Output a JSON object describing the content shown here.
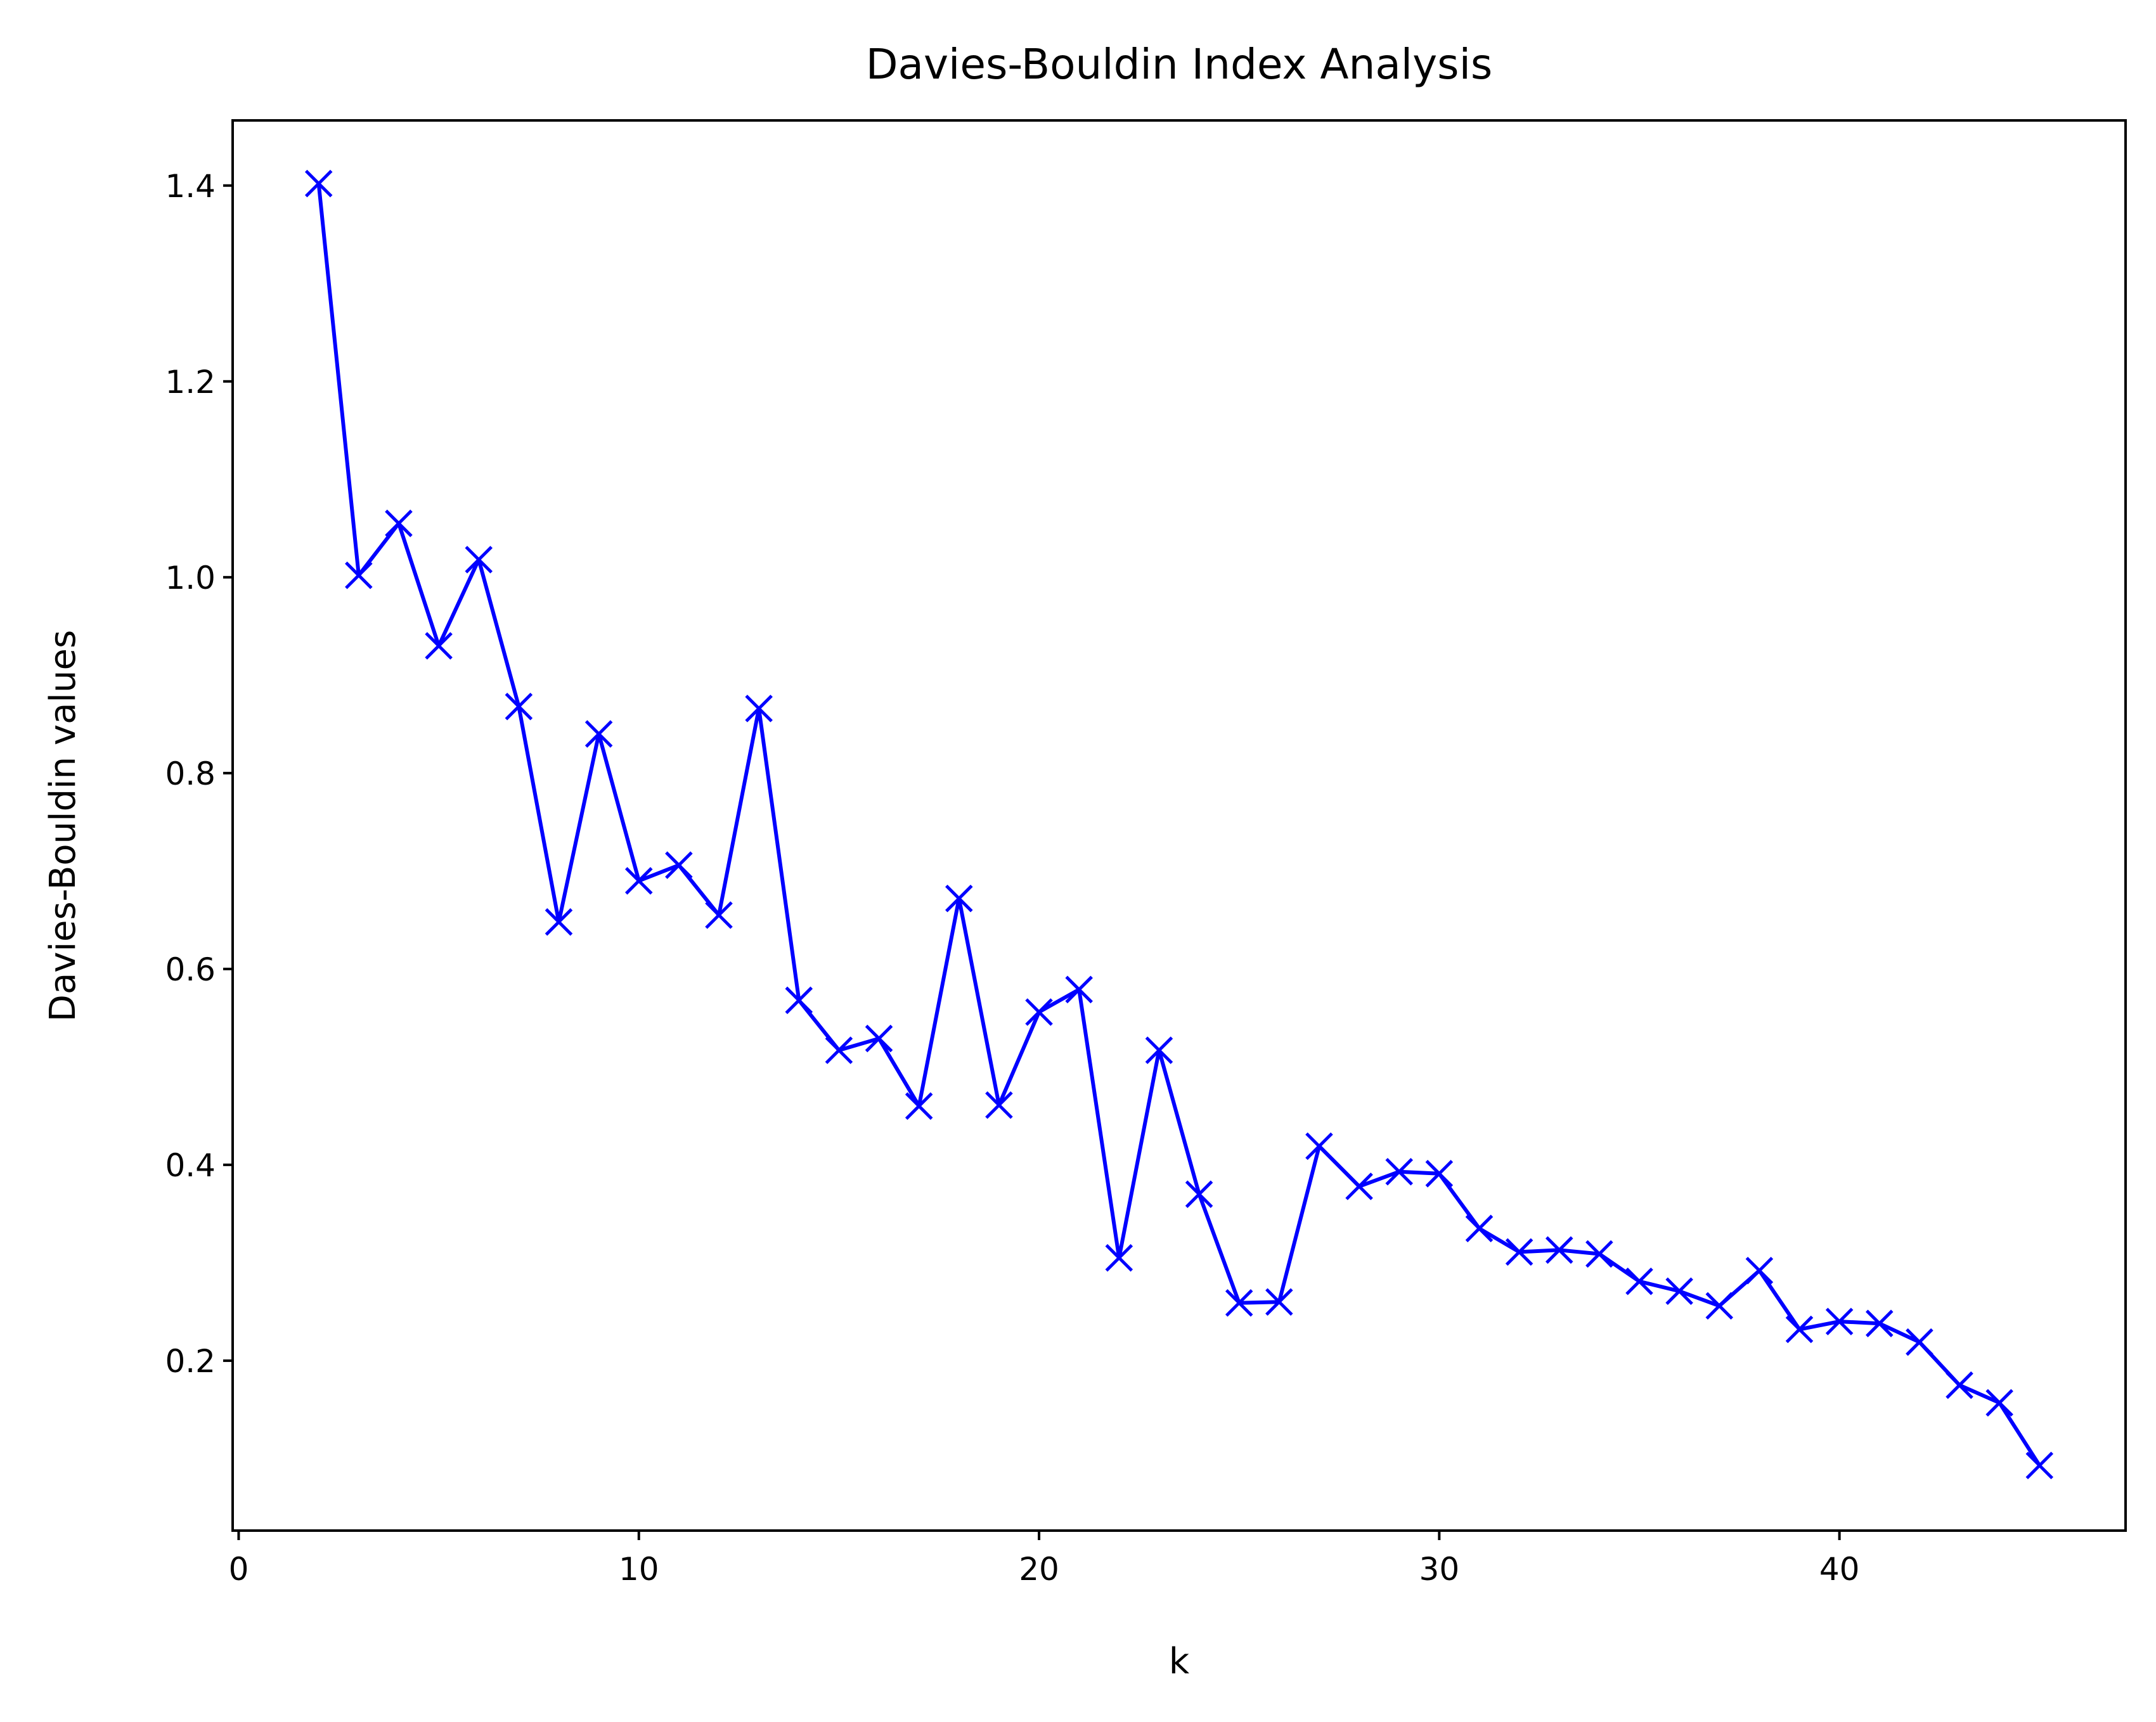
{
  "chart_data": {
    "type": "line",
    "title": "Davies-Bouldin Index Analysis",
    "xlabel": "k",
    "ylabel": "Davies-Bouldin values",
    "xlim": [
      -0.15,
      47.15
    ],
    "ylim": [
      0.0265,
      1.4665
    ],
    "x_ticks": [
      0,
      10,
      20,
      30,
      40
    ],
    "y_ticks": [
      0.2,
      0.4,
      0.6,
      0.8,
      1.0,
      1.2,
      1.4
    ],
    "x_tick_labels": [
      "0",
      "10",
      "20",
      "30",
      "40"
    ],
    "y_tick_labels": [
      "0.2",
      "0.4",
      "0.6",
      "0.8",
      "1.0",
      "1.2",
      "1.4"
    ],
    "grid": false,
    "legend": "none",
    "marker": "x",
    "series": [
      {
        "color": "#0000ff",
        "x": [
          2,
          3,
          4,
          5,
          6,
          7,
          8,
          9,
          10,
          11,
          12,
          13,
          14,
          15,
          16,
          17,
          18,
          19,
          20,
          21,
          22,
          23,
          24,
          25,
          26,
          27,
          28,
          29,
          30,
          31,
          32,
          33,
          34,
          35,
          36,
          37,
          38,
          39,
          40,
          41,
          42,
          43,
          44,
          45
        ],
        "values": [
          1.402,
          1.002,
          1.055,
          0.93,
          1.018,
          0.868,
          0.648,
          0.84,
          0.69,
          0.706,
          0.655,
          0.866,
          0.568,
          0.517,
          0.529,
          0.46,
          0.672,
          0.461,
          0.556,
          0.579,
          0.305,
          0.517,
          0.37,
          0.259,
          0.26,
          0.419,
          0.378,
          0.393,
          0.391,
          0.335,
          0.311,
          0.313,
          0.309,
          0.281,
          0.271,
          0.256,
          0.292,
          0.232,
          0.24,
          0.238,
          0.219,
          0.175,
          0.157,
          0.093
        ]
      }
    ]
  }
}
